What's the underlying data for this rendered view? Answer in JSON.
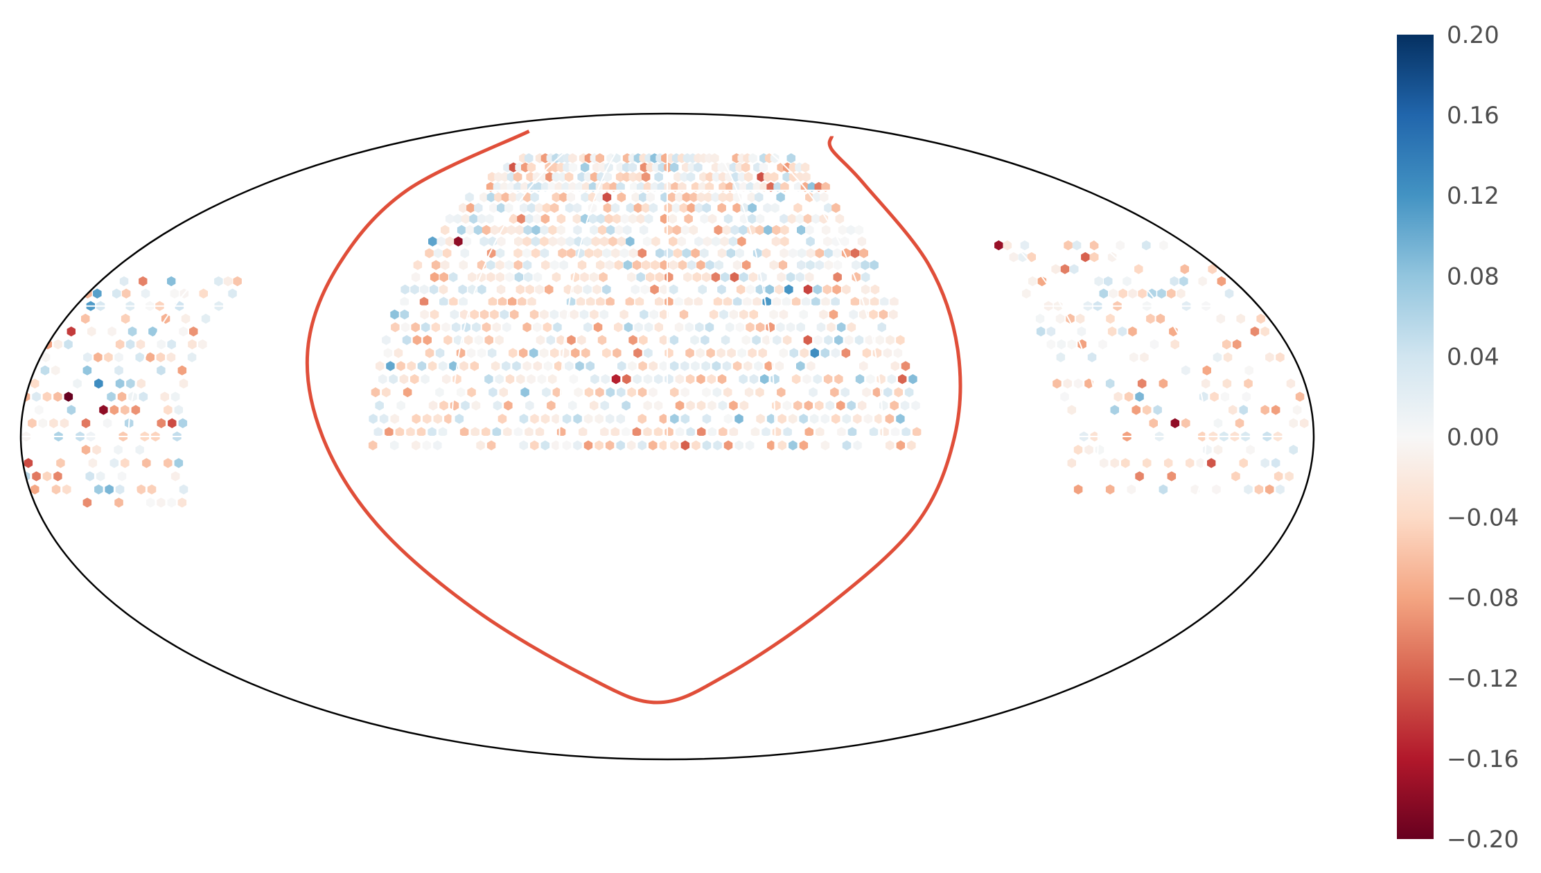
{
  "chart_data": {
    "type": "heatmap",
    "projection": "mollweide",
    "title": "",
    "xlabel": "",
    "ylabel": "",
    "grid": true,
    "colormap": "RdBu",
    "colorbar": {
      "position": "right",
      "vmin": -0.2,
      "vmax": 0.2,
      "ticks": [
        0.2,
        0.16,
        0.12,
        0.08,
        0.04,
        0.0,
        -0.04,
        -0.08,
        -0.12,
        -0.16,
        -0.2
      ],
      "tick_labels": [
        "0.20",
        "0.16",
        "0.12",
        "0.08",
        "0.04",
        "0.00",
        "−0.04",
        "−0.08",
        "−0.12",
        "−0.16",
        "−0.20"
      ]
    },
    "boundary_curve": {
      "color": "#e04e39",
      "points": [
        {
          "lon": -118,
          "lat": 80
        },
        {
          "lon": -112,
          "lat": 60
        },
        {
          "lon": -108,
          "lat": 40
        },
        {
          "lon": -104,
          "lat": 20
        },
        {
          "lon": -96,
          "lat": 0
        },
        {
          "lon": -84,
          "lat": -20
        },
        {
          "lon": -64,
          "lat": -40
        },
        {
          "lon": -34,
          "lat": -58
        },
        {
          "lon": -5,
          "lat": -66
        },
        {
          "lon": 24,
          "lat": -58
        },
        {
          "lon": 52,
          "lat": -40
        },
        {
          "lon": 72,
          "lat": -20
        },
        {
          "lon": 80,
          "lat": 0
        },
        {
          "lon": 84,
          "lat": 20
        },
        {
          "lon": 86,
          "lat": 40
        },
        {
          "lon": 88,
          "lat": 62
        },
        {
          "lon": 100,
          "lat": 73
        },
        {
          "lon": 125,
          "lat": 78
        }
      ]
    },
    "hexbin_region": {
      "dense": {
        "lon_range": [
          -82,
          70
        ],
        "lat_range": [
          -2,
          70
        ],
        "mean": -0.01,
        "spread": 0.06
      },
      "sparse_east": {
        "lon_range": [
          110,
          178
        ],
        "lat_range": [
          -12,
          45
        ],
        "mean": -0.02,
        "spread": 0.07
      },
      "sparse_west": {
        "lon_range": [
          -180,
          -135
        ],
        "lat_range": [
          -15,
          38
        ],
        "mean": -0.02,
        "spread": 0.08
      },
      "gridsize_deg": 3
    }
  }
}
